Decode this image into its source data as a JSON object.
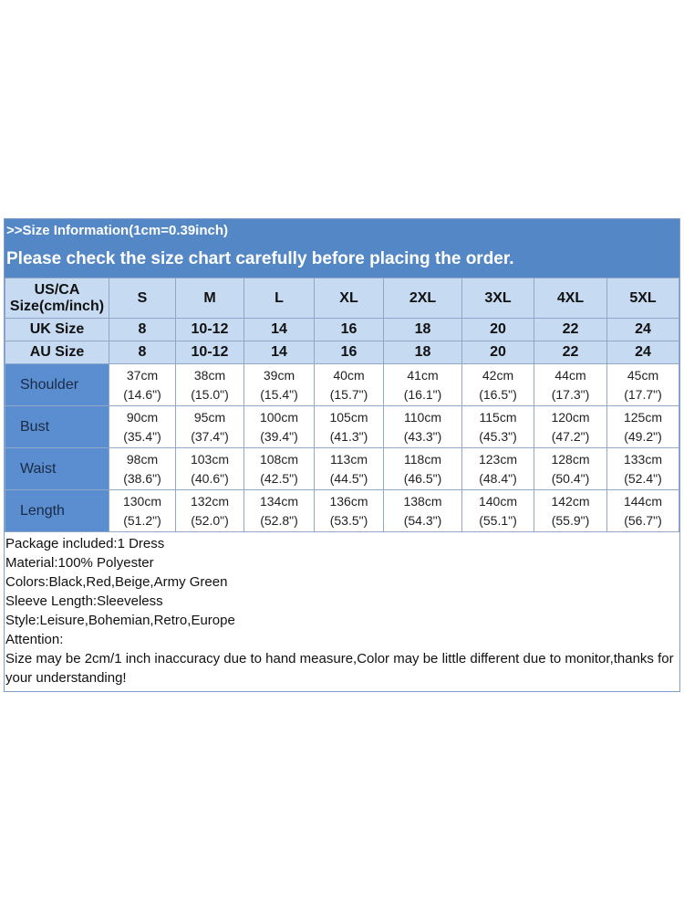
{
  "header": {
    "line1": ">>Size Information(1cm=0.39inch)",
    "line2": "Please check the size chart carefully before placing the order."
  },
  "colors": {
    "banner": "#5487c5",
    "header_cells": "#c6daf2",
    "label_cells": "#5a8ed0"
  },
  "table": {
    "size_header": "US/CA Size(cm/inch)",
    "sizes": [
      "S",
      "M",
      "L",
      "XL",
      "2XL",
      "3XL",
      "4XL",
      "5XL"
    ],
    "uk": {
      "label": "UK Size",
      "values": [
        "8",
        "10-12",
        "14",
        "16",
        "18",
        "20",
        "22",
        "24"
      ]
    },
    "au": {
      "label": "AU Size",
      "values": [
        "8",
        "10-12",
        "14",
        "16",
        "18",
        "20",
        "22",
        "24"
      ]
    },
    "rows": [
      {
        "label": "Shoulder",
        "cm": [
          "37cm",
          "38cm",
          "39cm",
          "40cm",
          "41cm",
          "42cm",
          "44cm",
          "45cm"
        ],
        "inch": [
          "(14.6\")",
          "(15.0\")",
          "(15.4\")",
          "(15.7\")",
          "(16.1\")",
          "(16.5\")",
          "(17.3\")",
          "(17.7\")"
        ]
      },
      {
        "label": "Bust",
        "cm": [
          "90cm",
          "95cm",
          "100cm",
          "105cm",
          "110cm",
          "115cm",
          "120cm",
          "125cm"
        ],
        "inch": [
          "(35.4\")",
          "(37.4\")",
          "(39.4\")",
          "(41.3\")",
          "(43.3\")",
          "(45.3\")",
          "(47.2\")",
          "(49.2\")"
        ]
      },
      {
        "label": "Waist",
        "cm": [
          "98cm",
          "103cm",
          "108cm",
          "113cm",
          "118cm",
          "123cm",
          "128cm",
          "133cm"
        ],
        "inch": [
          "(38.6\")",
          "(40.6\")",
          "(42.5\")",
          "(44.5\")",
          "(46.5\")",
          "(48.4\")",
          "(50.4\")",
          "(52.4\")"
        ]
      },
      {
        "label": "Length",
        "cm": [
          "130cm",
          "132cm",
          "134cm",
          "136cm",
          "138cm",
          "140cm",
          "142cm",
          "144cm"
        ],
        "inch": [
          "(51.2\")",
          "(52.0\")",
          "(52.8\")",
          "(53.5\")",
          "(54.3\")",
          "(55.1\")",
          "(55.9\")",
          "(56.7\")"
        ]
      }
    ]
  },
  "notes": [
    "Package included:1 Dress",
    "Material:100% Polyester",
    "Colors:Black,Red,Beige,Army Green",
    "Sleeve Length:Sleeveless",
    "Style:Leisure,Bohemian,Retro,Europe",
    "Attention:",
    "Size may be 2cm/1 inch inaccuracy due to hand measure,Color may be little different due to monitor,thanks for your understanding!"
  ]
}
